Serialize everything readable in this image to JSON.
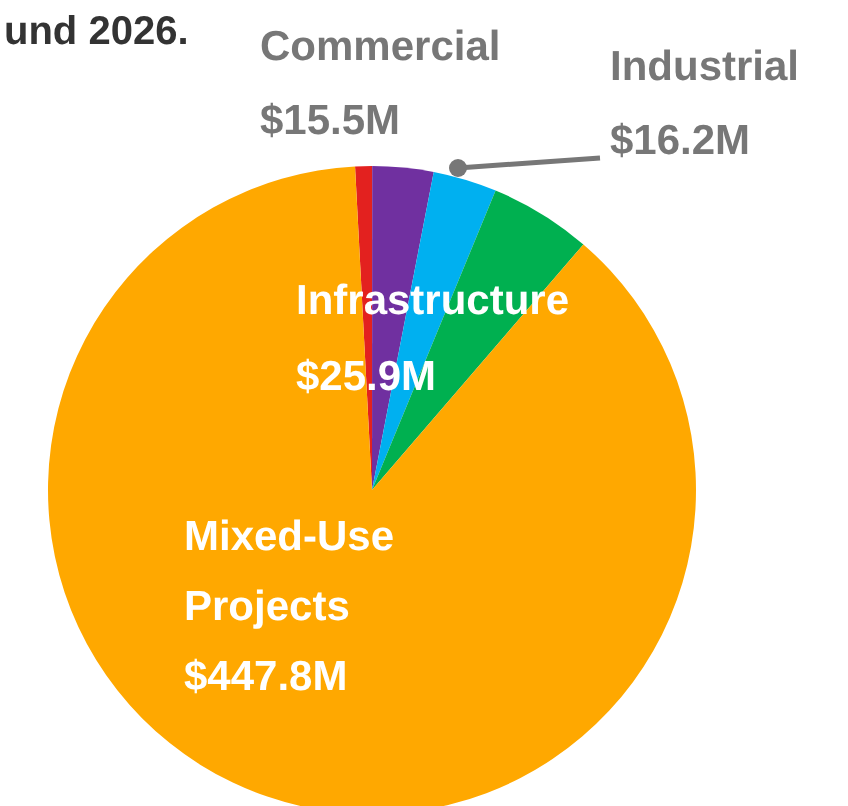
{
  "chart_data": {
    "type": "pie",
    "title": "und 2026.",
    "categories": [
      null,
      "Commercial",
      "Industrial",
      "Infrastructure",
      "Mixed-Use Projects"
    ],
    "values": [
      4.3,
      15.5,
      16.2,
      25.9,
      447.8
    ],
    "value_labels": [
      null,
      "$15.5M",
      "$16.2M",
      "$25.9M",
      "$447.8M"
    ],
    "colors": [
      "#e3211f",
      "#7030a0",
      "#00b0f0",
      "#00b050",
      "#ffa800"
    ]
  }
}
